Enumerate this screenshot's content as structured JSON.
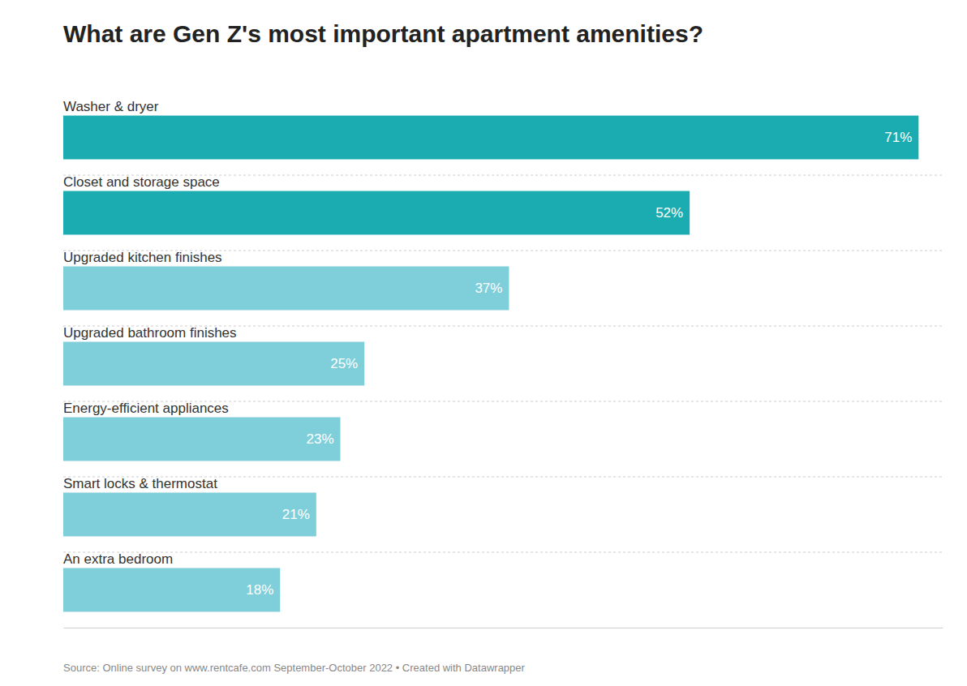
{
  "chart_data": {
    "type": "bar",
    "orientation": "horizontal",
    "title": "What are Gen Z's most important apartment amenities?",
    "categories": [
      "Washer & dryer",
      "Closet and storage space",
      "Upgraded kitchen finishes",
      "Upgraded bathroom finishes",
      "Energy-efficient appliances",
      "Smart locks & thermostat",
      "An extra bedroom"
    ],
    "values": [
      71,
      52,
      37,
      25,
      23,
      21,
      18
    ],
    "value_labels": [
      "71%",
      "52%",
      "37%",
      "25%",
      "23%",
      "21%",
      "18%"
    ],
    "colors": [
      "#1aacb0",
      "#1aacb0",
      "#7ecfda",
      "#7ecfda",
      "#7ecfda",
      "#7ecfda",
      "#7ecfda"
    ],
    "xlim": [
      0,
      73
    ],
    "data_labels": true,
    "tick_labels": false,
    "annotations": [
      "Source: Online survey on www.rentcafe.com September-October 2022 • Created with Datawrapper"
    ]
  }
}
